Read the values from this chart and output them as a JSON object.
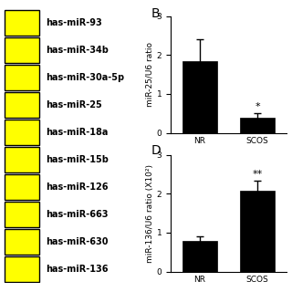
{
  "labels": [
    "has-miR-93",
    "has-miR-34b",
    "has-miR-30a-5p",
    "has-miR-25",
    "has-miR-18a",
    "has-miR-15b",
    "has-miR-126",
    "has-miR-663",
    "has-miR-630",
    "has-miR-136"
  ],
  "heatmap_color": "#FFFF00",
  "bar_color": "#000000",
  "panel_B": {
    "label": "B",
    "categories": [
      "NR",
      "SCOS"
    ],
    "values": [
      1.85,
      0.38
    ],
    "errors": [
      0.55,
      0.12
    ],
    "ylabel": "miR-25/U6 ratio",
    "ylim": [
      0,
      3
    ],
    "yticks": [
      0,
      1,
      2,
      3
    ],
    "significance": [
      "",
      "*"
    ]
  },
  "panel_D": {
    "label": "D",
    "categories": [
      "NR",
      "SCOS"
    ],
    "values": [
      0.78,
      2.08
    ],
    "errors": [
      0.12,
      0.25
    ],
    "ylabel": "miR-136/U6 ratio (X10²)",
    "ylim": [
      0,
      3
    ],
    "yticks": [
      0,
      1,
      2,
      3
    ],
    "significance": [
      "",
      "**"
    ]
  },
  "background_color": "#ffffff",
  "font_size": 6.5,
  "sig_font_size": 8,
  "panel_label_font_size": 10,
  "label_font_size": 7
}
